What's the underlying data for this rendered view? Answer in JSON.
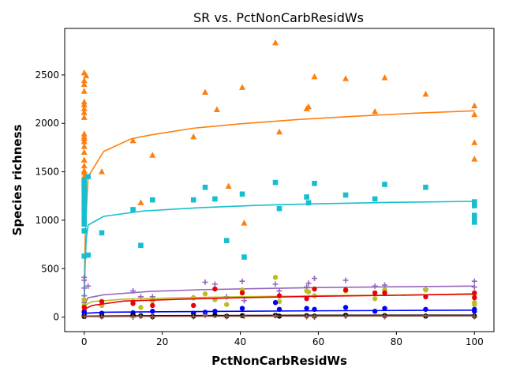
{
  "chart_data": {
    "type": "scatter",
    "title": "SR vs. PctNonCarbResidWs",
    "xlabel": "PctNonCarbResidWs",
    "ylabel": "Species richness",
    "xlim": [
      -5,
      105
    ],
    "ylim": [
      -150,
      2980
    ],
    "xticks": [
      0,
      20,
      40,
      60,
      80,
      100
    ],
    "yticks": [
      0,
      500,
      1000,
      1500,
      2000,
      2500
    ],
    "grid": false,
    "legend": "none",
    "series": [
      {
        "marker": "triangle",
        "color": "#ff7f0e",
        "points": [
          [
            0,
            2520
          ],
          [
            0.5,
            2490
          ],
          [
            0,
            2440
          ],
          [
            0,
            2400
          ],
          [
            0,
            2330
          ],
          [
            0,
            2220
          ],
          [
            0,
            2190
          ],
          [
            0,
            2150
          ],
          [
            0,
            2110
          ],
          [
            0,
            2060
          ],
          [
            0,
            1890
          ],
          [
            0,
            1860
          ],
          [
            0,
            1840
          ],
          [
            0,
            1810
          ],
          [
            0,
            1760
          ],
          [
            0,
            1700
          ],
          [
            0,
            1620
          ],
          [
            0,
            1560
          ],
          [
            0,
            1510
          ],
          [
            0,
            1490
          ],
          [
            0,
            1450
          ],
          [
            0,
            1410
          ],
          [
            0,
            1380
          ],
          [
            4.5,
            1500
          ],
          [
            12.5,
            1820
          ],
          [
            14.5,
            1180
          ],
          [
            17.5,
            1670
          ],
          [
            28,
            1860
          ],
          [
            31,
            2320
          ],
          [
            34,
            2140
          ],
          [
            37,
            1350
          ],
          [
            40.5,
            2370
          ],
          [
            41,
            970
          ],
          [
            49,
            2830
          ],
          [
            50,
            1910
          ],
          [
            57,
            2150
          ],
          [
            57.5,
            2170
          ],
          [
            59,
            2480
          ],
          [
            67,
            2460
          ],
          [
            74.5,
            2120
          ],
          [
            77,
            2470
          ],
          [
            87.5,
            2300
          ],
          [
            100,
            2180
          ],
          [
            100,
            2090
          ],
          [
            100,
            1800
          ],
          [
            100,
            1630
          ]
        ],
        "fit": [
          [
            0,
            60
          ],
          [
            0.1,
            500
          ],
          [
            0.3,
            900
          ],
          [
            1,
            1450
          ],
          [
            5,
            1710
          ],
          [
            12,
            1840
          ],
          [
            17,
            1880
          ],
          [
            28,
            1950
          ],
          [
            40,
            1995
          ],
          [
            55,
            2040
          ],
          [
            70,
            2075
          ],
          [
            85,
            2105
          ],
          [
            100,
            2130
          ]
        ]
      },
      {
        "marker": "square",
        "color": "#17becf",
        "points": [
          [
            0,
            1410
          ],
          [
            0,
            1390
          ],
          [
            0,
            1350
          ],
          [
            0,
            1320
          ],
          [
            0,
            1290
          ],
          [
            0,
            1250
          ],
          [
            0,
            1210
          ],
          [
            0,
            1180
          ],
          [
            0,
            1150
          ],
          [
            0,
            1120
          ],
          [
            0,
            1100
          ],
          [
            0,
            1060
          ],
          [
            0,
            1010
          ],
          [
            0,
            960
          ],
          [
            0,
            890
          ],
          [
            0,
            630
          ],
          [
            1,
            1450
          ],
          [
            1,
            640
          ],
          [
            4.5,
            870
          ],
          [
            12.5,
            1110
          ],
          [
            14.5,
            740
          ],
          [
            17.5,
            1210
          ],
          [
            28,
            1210
          ],
          [
            31,
            1340
          ],
          [
            33.5,
            1220
          ],
          [
            36.5,
            790
          ],
          [
            40.5,
            1270
          ],
          [
            41,
            620
          ],
          [
            49,
            1390
          ],
          [
            50,
            1120
          ],
          [
            57,
            1240
          ],
          [
            57.5,
            1180
          ],
          [
            59,
            1380
          ],
          [
            67,
            1260
          ],
          [
            74.5,
            1220
          ],
          [
            77,
            1370
          ],
          [
            87.5,
            1340
          ],
          [
            100,
            1190
          ],
          [
            100,
            1150
          ],
          [
            100,
            1050
          ],
          [
            100,
            1020
          ],
          [
            100,
            980
          ]
        ],
        "fit": [
          [
            0,
            40
          ],
          [
            0.2,
            500
          ],
          [
            0.5,
            800
          ],
          [
            1,
            950
          ],
          [
            5,
            1040
          ],
          [
            15,
            1095
          ],
          [
            30,
            1130
          ],
          [
            45,
            1155
          ],
          [
            60,
            1170
          ],
          [
            80,
            1185
          ],
          [
            100,
            1195
          ]
        ]
      },
      {
        "marker": "plus",
        "color": "#9467bd",
        "points": [
          [
            0,
            410
          ],
          [
            0,
            380
          ],
          [
            0,
            300
          ],
          [
            0,
            220
          ],
          [
            0,
            150
          ],
          [
            1,
            320
          ],
          [
            12.5,
            270
          ],
          [
            14.5,
            210
          ],
          [
            17.5,
            210
          ],
          [
            28,
            200
          ],
          [
            31,
            360
          ],
          [
            33.5,
            340
          ],
          [
            36.5,
            210
          ],
          [
            40.5,
            370
          ],
          [
            41,
            170
          ],
          [
            49,
            340
          ],
          [
            50,
            270
          ],
          [
            57,
            310
          ],
          [
            57.5,
            350
          ],
          [
            59,
            400
          ],
          [
            67,
            380
          ],
          [
            74.5,
            320
          ],
          [
            77,
            330
          ],
          [
            87.5,
            290
          ],
          [
            100,
            370
          ],
          [
            100,
            310
          ]
        ],
        "fit": [
          [
            0,
            20
          ],
          [
            0.3,
            150
          ],
          [
            1,
            200
          ],
          [
            5,
            230
          ],
          [
            17,
            265
          ],
          [
            30,
            283
          ],
          [
            45,
            295
          ],
          [
            60,
            305
          ],
          [
            80,
            313
          ],
          [
            100,
            320
          ]
        ]
      },
      {
        "marker": "circle",
        "color": "#bcbd22",
        "points": [
          [
            0,
            180
          ],
          [
            0,
            120
          ],
          [
            0,
            60
          ],
          [
            4.5,
            120
          ],
          [
            12.5,
            160
          ],
          [
            14.5,
            100
          ],
          [
            17.5,
            170
          ],
          [
            28,
            200
          ],
          [
            31,
            240
          ],
          [
            33.5,
            180
          ],
          [
            36.5,
            130
          ],
          [
            40.5,
            280
          ],
          [
            49,
            410
          ],
          [
            50,
            160
          ],
          [
            57,
            270
          ],
          [
            57.5,
            260
          ],
          [
            59,
            220
          ],
          [
            67,
            270
          ],
          [
            74.5,
            190
          ],
          [
            77,
            280
          ],
          [
            87.5,
            280
          ],
          [
            100,
            230
          ],
          [
            100,
            150
          ],
          [
            100,
            130
          ]
        ],
        "fit": [
          [
            0,
            10
          ],
          [
            0.5,
            130
          ],
          [
            2,
            160
          ],
          [
            10,
            185
          ],
          [
            25,
            200
          ],
          [
            40,
            210
          ],
          [
            60,
            220
          ],
          [
            80,
            228
          ],
          [
            100,
            235
          ]
        ]
      },
      {
        "marker": "circle",
        "color": "#e8000b",
        "points": [
          [
            0,
            100
          ],
          [
            0,
            60
          ],
          [
            4.5,
            160
          ],
          [
            12.5,
            140
          ],
          [
            17.5,
            120
          ],
          [
            28,
            120
          ],
          [
            33.5,
            290
          ],
          [
            40.5,
            250
          ],
          [
            50,
            220
          ],
          [
            57,
            190
          ],
          [
            59,
            290
          ],
          [
            67,
            280
          ],
          [
            74.5,
            250
          ],
          [
            77,
            250
          ],
          [
            87.5,
            210
          ],
          [
            100,
            250
          ],
          [
            100,
            200
          ]
        ],
        "fit": [
          [
            0,
            10
          ],
          [
            0.5,
            90
          ],
          [
            2,
            120
          ],
          [
            10,
            165
          ],
          [
            25,
            185
          ],
          [
            40,
            200
          ],
          [
            60,
            215
          ],
          [
            80,
            225
          ],
          [
            100,
            240
          ]
        ]
      },
      {
        "marker": "circle",
        "color": "#0000ff",
        "points": [
          [
            0,
            50
          ],
          [
            0,
            20
          ],
          [
            4.5,
            40
          ],
          [
            12.5,
            45
          ],
          [
            17.5,
            60
          ],
          [
            28,
            40
          ],
          [
            31,
            50
          ],
          [
            33.5,
            60
          ],
          [
            40.5,
            90
          ],
          [
            49,
            150
          ],
          [
            50,
            80
          ],
          [
            57,
            90
          ],
          [
            59,
            80
          ],
          [
            67,
            100
          ],
          [
            74.5,
            60
          ],
          [
            77,
            90
          ],
          [
            87.5,
            80
          ],
          [
            100,
            80
          ],
          [
            100,
            60
          ]
        ],
        "fit": [
          [
            0,
            5
          ],
          [
            0.5,
            40
          ],
          [
            5,
            50
          ],
          [
            20,
            55
          ],
          [
            40,
            60
          ],
          [
            60,
            65
          ],
          [
            80,
            68
          ],
          [
            100,
            72
          ]
        ]
      },
      {
        "marker": "circle",
        "color": "#000000",
        "points": [
          [
            0,
            5
          ],
          [
            4.5,
            10
          ],
          [
            12.5,
            20
          ],
          [
            14.5,
            15
          ],
          [
            17.5,
            5
          ],
          [
            28,
            10
          ],
          [
            33.5,
            20
          ],
          [
            36.5,
            10
          ],
          [
            40.5,
            15
          ],
          [
            49,
            20
          ],
          [
            50,
            10
          ],
          [
            57,
            15
          ],
          [
            59,
            10
          ],
          [
            67,
            20
          ],
          [
            77,
            15
          ],
          [
            87.5,
            10
          ],
          [
            100,
            10
          ]
        ],
        "fit": [
          [
            0,
            2
          ],
          [
            1,
            10
          ],
          [
            20,
            15
          ],
          [
            50,
            18
          ],
          [
            100,
            20
          ]
        ]
      },
      {
        "marker": "plus",
        "color": "#8c564b",
        "points": [
          [
            0,
            10
          ],
          [
            4.5,
            5
          ],
          [
            12.5,
            0
          ],
          [
            14.5,
            10
          ],
          [
            17.5,
            0
          ],
          [
            28,
            5
          ],
          [
            31,
            20
          ],
          [
            36.5,
            5
          ],
          [
            41,
            10
          ],
          [
            49,
            15
          ],
          [
            57,
            5
          ],
          [
            59,
            0
          ],
          [
            67,
            10
          ],
          [
            77,
            5
          ],
          [
            87.5,
            15
          ],
          [
            100,
            5
          ]
        ],
        "fit": [
          [
            0,
            0
          ],
          [
            1,
            5
          ],
          [
            20,
            8
          ],
          [
            50,
            10
          ],
          [
            100,
            12
          ]
        ]
      }
    ]
  }
}
